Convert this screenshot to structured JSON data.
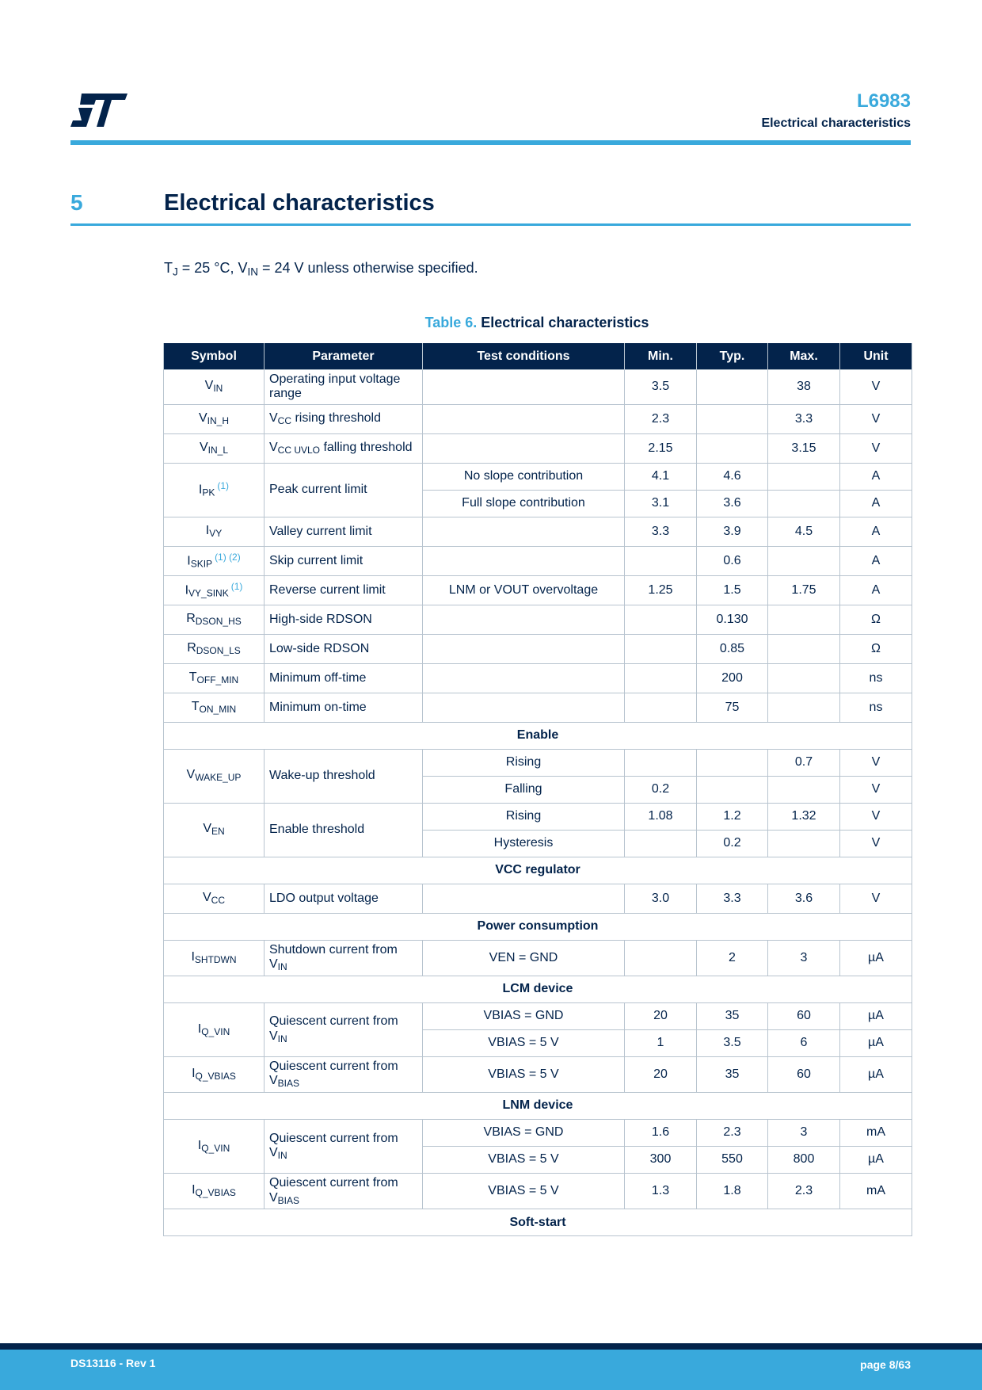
{
  "header": {
    "logo_text": "ST",
    "doc_title": "L6983",
    "section_label": "Electrical characteristics"
  },
  "section": {
    "number": "5",
    "title": "Electrical characteristics"
  },
  "conditions": {
    "parts": [
      {
        "t": "T"
      },
      {
        "sub": "J"
      },
      {
        "t": " = 25 °C, V"
      },
      {
        "sub": "IN"
      },
      {
        "t": " = 24 V unless otherwise specified."
      }
    ]
  },
  "caption": {
    "number": "Table 6.",
    "title": "Electrical characteristics"
  },
  "table": {
    "headers": [
      "Symbol",
      "Parameter",
      "Test conditions",
      "Min.",
      "Typ.",
      "Max.",
      "Unit"
    ],
    "rows": [
      {
        "symbol": {
          "main": "V",
          "sub": "IN"
        },
        "parameter": [
          {
            "t": "Operating input voltage range"
          }
        ],
        "conds": [
          {
            "cond": "",
            "min": "3.5",
            "typ": "",
            "max": "38",
            "unit": "V"
          }
        ]
      },
      {
        "symbol": {
          "main": "V",
          "sub": "IN_H"
        },
        "parameter": [
          {
            "t": "V"
          },
          {
            "sub": "CC"
          },
          {
            "t": " rising threshold"
          }
        ],
        "conds": [
          {
            "cond": "",
            "min": "2.3",
            "typ": "",
            "max": "3.3",
            "unit": "V"
          }
        ]
      },
      {
        "symbol": {
          "main": "V",
          "sub": "IN_L"
        },
        "parameter": [
          {
            "t": "V"
          },
          {
            "sub": "CC UVLO"
          },
          {
            "t": " falling threshold"
          }
        ],
        "conds": [
          {
            "cond": "",
            "min": "2.15",
            "typ": "",
            "max": "3.15",
            "unit": "V"
          }
        ]
      },
      {
        "symbol": {
          "main": "I",
          "sub": "PK",
          "notes": "(1)"
        },
        "parameter": [
          {
            "t": "Peak current limit"
          }
        ],
        "conds": [
          {
            "cond": "No slope contribution",
            "min": "4.1",
            "typ": "4.6",
            "max": "",
            "unit": "A"
          },
          {
            "cond": "Full slope contribution",
            "min": "3.1",
            "typ": "3.6",
            "max": "",
            "unit": "A"
          }
        ]
      },
      {
        "symbol": {
          "main": "I",
          "sub": "VY"
        },
        "parameter": [
          {
            "t": "Valley current limit"
          }
        ],
        "conds": [
          {
            "cond": "",
            "min": "3.3",
            "typ": "3.9",
            "max": "4.5",
            "unit": "A"
          }
        ]
      },
      {
        "symbol": {
          "main": "I",
          "sub": "SKIP",
          "notes": "(1) (2)"
        },
        "parameter": [
          {
            "t": "Skip current limit"
          }
        ],
        "conds": [
          {
            "cond": "",
            "min": "",
            "typ": "0.6",
            "max": "",
            "unit": "A"
          }
        ]
      },
      {
        "symbol": {
          "main": "I",
          "sub": "VY_SINK",
          "notes": "(1)"
        },
        "parameter": [
          {
            "t": "Reverse current limit"
          }
        ],
        "conds": [
          {
            "cond": "LNM or VOUT overvoltage",
            "min": "1.25",
            "typ": "1.5",
            "max": "1.75",
            "unit": "A"
          }
        ]
      },
      {
        "symbol": {
          "main": "R",
          "sub": "DSON_HS"
        },
        "parameter": [
          {
            "t": "High-side RDSON"
          }
        ],
        "conds": [
          {
            "cond": "",
            "min": "",
            "typ": "0.130",
            "max": "",
            "unit": "Ω"
          }
        ]
      },
      {
        "symbol": {
          "main": "R",
          "sub": "DSON_LS"
        },
        "parameter": [
          {
            "t": "Low-side RDSON"
          }
        ],
        "conds": [
          {
            "cond": "",
            "min": "",
            "typ": "0.85",
            "max": "",
            "unit": "Ω"
          }
        ]
      },
      {
        "symbol": {
          "main": "T",
          "sub": "OFF_MIN"
        },
        "parameter": [
          {
            "t": "Minimum off-time"
          }
        ],
        "conds": [
          {
            "cond": "",
            "min": "",
            "typ": "200",
            "max": "",
            "unit": "ns"
          }
        ]
      },
      {
        "symbol": {
          "main": "T",
          "sub": "ON_MIN"
        },
        "parameter": [
          {
            "t": "Minimum on-time"
          }
        ],
        "conds": [
          {
            "cond": "",
            "min": "",
            "typ": "75",
            "max": "",
            "unit": "ns"
          }
        ]
      },
      {
        "section": "Enable"
      },
      {
        "symbol": {
          "main": "V",
          "sub": "WAKE_UP"
        },
        "parameter": [
          {
            "t": "Wake-up threshold"
          }
        ],
        "conds": [
          {
            "cond": "Rising",
            "min": "",
            "typ": "",
            "max": "0.7",
            "unit": "V"
          },
          {
            "cond": "Falling",
            "min": "0.2",
            "typ": "",
            "max": "",
            "unit": "V"
          }
        ]
      },
      {
        "symbol": {
          "main": "V",
          "sub": "EN"
        },
        "parameter": [
          {
            "t": "Enable threshold"
          }
        ],
        "conds": [
          {
            "cond": "Rising",
            "min": "1.08",
            "typ": "1.2",
            "max": "1.32",
            "unit": "V"
          },
          {
            "cond": "Hysteresis",
            "min": "",
            "typ": "0.2",
            "max": "",
            "unit": "V"
          }
        ]
      },
      {
        "section": "VCC regulator"
      },
      {
        "symbol": {
          "main": "V",
          "sub": "CC"
        },
        "parameter": [
          {
            "t": "LDO output voltage"
          }
        ],
        "conds": [
          {
            "cond": "",
            "min": "3.0",
            "typ": "3.3",
            "max": "3.6",
            "unit": "V"
          }
        ]
      },
      {
        "section": "Power consumption"
      },
      {
        "symbol": {
          "main": "I",
          "sub": "SHTDWN"
        },
        "parameter": [
          {
            "t": "Shutdown current from V"
          },
          {
            "sub": "IN"
          }
        ],
        "conds": [
          {
            "cond": "VEN = GND",
            "min": "",
            "typ": "2",
            "max": "3",
            "unit": "µA"
          }
        ]
      },
      {
        "section": "LCM device"
      },
      {
        "symbol": {
          "main": "I",
          "sub": "Q_VIN"
        },
        "parameter": [
          {
            "t": "Quiescent current from V"
          },
          {
            "sub": "IN"
          }
        ],
        "conds": [
          {
            "cond": "VBIAS = GND",
            "min": "20",
            "typ": "35",
            "max": "60",
            "unit": "µA"
          },
          {
            "cond": "VBIAS = 5 V",
            "min": "1",
            "typ": "3.5",
            "max": "6",
            "unit": "µA"
          }
        ]
      },
      {
        "symbol": {
          "main": "I",
          "sub": "Q_VBIAS"
        },
        "parameter": [
          {
            "t": "Quiescent current from V"
          },
          {
            "sub": "BIAS"
          }
        ],
        "conds": [
          {
            "cond": "VBIAS = 5 V",
            "min": "20",
            "typ": "35",
            "max": "60",
            "unit": "µA"
          }
        ]
      },
      {
        "section": "LNM device"
      },
      {
        "symbol": {
          "main": "I",
          "sub": "Q_VIN"
        },
        "parameter": [
          {
            "t": "Quiescent current from V"
          },
          {
            "sub": "IN"
          }
        ],
        "conds": [
          {
            "cond": "VBIAS = GND",
            "min": "1.6",
            "typ": "2.3",
            "max": "3",
            "unit": "mA"
          },
          {
            "cond": "VBIAS = 5 V",
            "min": "300",
            "typ": "550",
            "max": "800",
            "unit": "µA"
          }
        ]
      },
      {
        "symbol": {
          "main": "I",
          "sub": "Q_VBIAS"
        },
        "parameter": [
          {
            "t": "Quiescent current from V"
          },
          {
            "sub": "BIAS"
          }
        ],
        "conds": [
          {
            "cond": "VBIAS = 5 V",
            "min": "1.3",
            "typ": "1.8",
            "max": "2.3",
            "unit": "mA"
          }
        ]
      },
      {
        "section": "Soft-start"
      }
    ]
  },
  "footer": {
    "doc_id": "DS13116 - Rev 1",
    "page": "page 8/63"
  },
  "colors": {
    "navy": "#03234b",
    "accent": "#39a9dc",
    "border": "#b8c4cf"
  }
}
